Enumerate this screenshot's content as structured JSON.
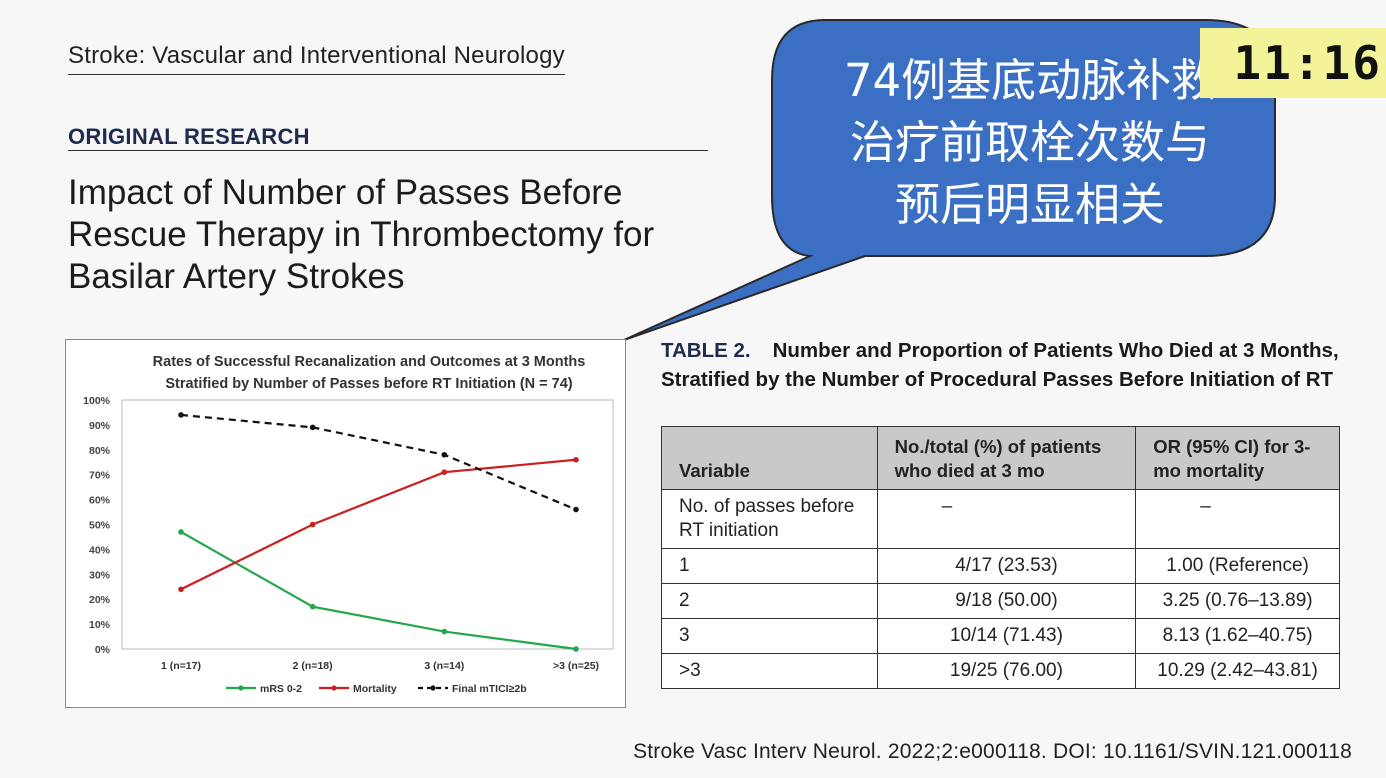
{
  "journal": "Stroke: Vascular and Interventional Neurology",
  "section": "ORIGINAL RESEARCH",
  "title": "Impact of Number of Passes Before Rescue Therapy in Thrombectomy for Basilar Artery Strokes",
  "callout": {
    "lines": [
      "74例基底动脉补救",
      "治疗前取栓次数与",
      "预后明显相关"
    ],
    "color": "#3a6fc4"
  },
  "clock": "11:16",
  "chart_data": {
    "type": "line",
    "title": [
      "Rates of Successful Recanalization and Outcomes at 3 Months",
      "Stratified by Number of Passes before RT Initiation (N = 74)"
    ],
    "categories": [
      "1 (n=17)",
      "2 (n=18)",
      "3 (n=14)",
      ">3 (n=25)"
    ],
    "ylim": [
      0,
      100
    ],
    "yticks": [
      "0%",
      "10%",
      "20%",
      "30%",
      "40%",
      "50%",
      "60%",
      "70%",
      "80%",
      "90%",
      "100%"
    ],
    "legend_position": "bottom",
    "series": [
      {
        "name": "mRS 0-2",
        "values": [
          47,
          17,
          7,
          0
        ],
        "color": "#22a84a",
        "dash": false
      },
      {
        "name": "Mortality",
        "values": [
          24,
          50,
          71,
          76
        ],
        "color": "#cc1f1f",
        "dash": false
      },
      {
        "name": "Final mTICI≥2b",
        "values": [
          94,
          89,
          78,
          56
        ],
        "color": "#111111",
        "dash": true
      }
    ]
  },
  "table": {
    "label": "TABLE 2.",
    "caption": "Number and Proportion of Patients Who Died at 3 Months, Stratified by the Number of Procedural Passes Before Initiation of RT",
    "headers": [
      "Variable",
      "No./total (%) of patients who died at 3 mo",
      "OR (95% CI) for 3-mo mortality"
    ],
    "rows": [
      [
        "No. of passes before RT initiation",
        "–",
        "–"
      ],
      [
        "1",
        "4/17 (23.53)",
        "1.00 (Reference)"
      ],
      [
        "2",
        "9/18 (50.00)",
        "3.25 (0.76–13.89)"
      ],
      [
        "3",
        "10/14 (71.43)",
        "8.13 (1.62–40.75)"
      ],
      [
        ">3",
        "19/25 (76.00)",
        "10.29 (2.42–43.81)"
      ]
    ]
  },
  "citation": "Stroke Vasc Interv Neurol. 2022;2:e000118. DOI: 10.1161/SVIN.121.000118"
}
